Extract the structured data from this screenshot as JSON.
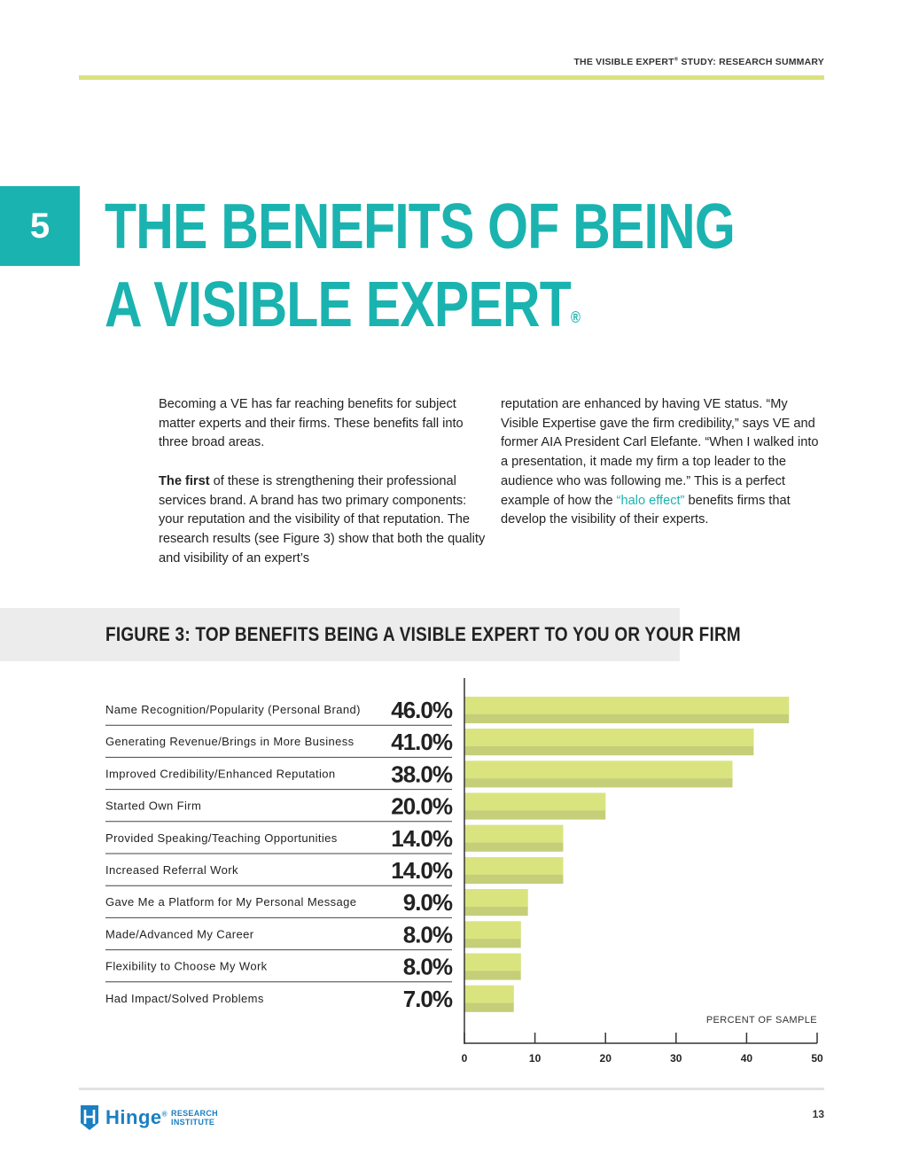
{
  "header": {
    "running_head_prefix": "THE VISIBLE EXPERT",
    "running_head_mark": "®",
    "running_head_suffix": " STUDY: RESEARCH SUMMARY"
  },
  "section": {
    "number": "5",
    "title_line1": "THE BENEFITS OF BEING",
    "title_line2": "A VISIBLE EXPERT",
    "title_mark": "®"
  },
  "body": {
    "p1": "Becoming a VE has far reaching benefits for subject matter experts and their firms. These benefits fall into three broad areas.",
    "p2_lead": "The first",
    "p2_text": " of these is strengthening their professional services brand. A brand has two primary components: your reputation and the visibility of that reputation. The research results (see Figure 3) show that both the quality and visibility of an expert’s",
    "p3_before": "reputation are enhanced by having VE status. “My Visible Expertise gave the firm credibility,” says VE and former AIA President Carl Elefante. “When I walked into a presentation, it made my firm a top leader to the audience who was following me.” This is a perfect example of how the ",
    "p3_link": "“halo effect”",
    "p3_after": " benefits firms that develop the visibility of their experts."
  },
  "figure": {
    "title": "FIGURE 3: TOP BENEFITS BEING A VISIBLE EXPERT TO YOU OR YOUR FIRM"
  },
  "chart_data": {
    "type": "bar",
    "orientation": "horizontal",
    "title": "FIGURE 3: TOP BENEFITS BEING A VISIBLE EXPERT TO YOU OR YOUR FIRM",
    "categories": [
      "Name Recognition/Popularity (Personal Brand)",
      "Generating Revenue/Brings in More Business",
      "Improved Credibility/Enhanced Reputation",
      "Started Own Firm",
      "Provided Speaking/Teaching Opportunities",
      "Increased Referral Work",
      "Gave Me a Platform for My Personal Message",
      "Made/Advanced My Career",
      "Flexibility to Choose My Work",
      "Had Impact/Solved Problems"
    ],
    "values": [
      46.0,
      41.0,
      38.0,
      20.0,
      14.0,
      14.0,
      9.0,
      8.0,
      8.0,
      7.0
    ],
    "value_labels": [
      "46.0%",
      "41.0%",
      "38.0%",
      "20.0%",
      "14.0%",
      "14.0%",
      "9.0%",
      "8.0%",
      "8.0%",
      "7.0%"
    ],
    "xlabel": "PERCENT OF SAMPLE",
    "xlim": [
      0,
      50
    ],
    "xticks": [
      "0",
      "10",
      "20",
      "30",
      "40",
      "50"
    ],
    "grid": false,
    "colors": {
      "bar_light": "#dae47f",
      "bar_dark": "#c5ce78",
      "axis": "#333333"
    }
  },
  "footer": {
    "logo_word": "Hinge",
    "logo_mark": "®",
    "logo_sub1": "RESEARCH",
    "logo_sub2": "INSTITUTE",
    "page_number": "13"
  },
  "colors": {
    "accent": "#1bb3b0",
    "rule": "#d9e27f",
    "logo": "#1b7fc1"
  }
}
